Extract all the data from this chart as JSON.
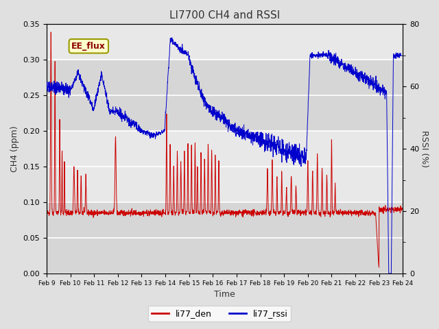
{
  "title": "LI7700 CH4 and RSSI",
  "xlabel": "Time",
  "ylabel_left": "CH4 (ppm)",
  "ylabel_right": "RSSI (%)",
  "ylim_left": [
    0.0,
    0.35
  ],
  "ylim_right": [
    0,
    80
  ],
  "yticks_left": [
    0.0,
    0.05,
    0.1,
    0.15,
    0.2,
    0.25,
    0.3,
    0.35
  ],
  "yticks_right_major": [
    0,
    20,
    40,
    60,
    80
  ],
  "yticks_right_minor": [
    10,
    30,
    50,
    70
  ],
  "color_ch4": "#cc0000",
  "color_rssi": "#0000cc",
  "legend_label_ch4": "li77_den",
  "legend_label_rssi": "li77_rssi",
  "annotation_text": "EE_flux",
  "bg_color": "#e0e0e0",
  "plot_bg_color": "#e8e8e8",
  "band_color_light": "#f0f0f0",
  "band_color_dark": "#d8d8d8",
  "xticklabels": [
    "Feb 9",
    "Feb 10",
    "Feb 11",
    "Feb 12",
    "Feb 13",
    "Feb 14",
    "Feb 15",
    "Feb 16",
    "Feb 17",
    "Feb 18",
    "Feb 19",
    "Feb 20",
    "Feb 21",
    "Feb 22",
    "Feb 23",
    "Feb 24"
  ],
  "num_points": 2000,
  "seed": 42
}
